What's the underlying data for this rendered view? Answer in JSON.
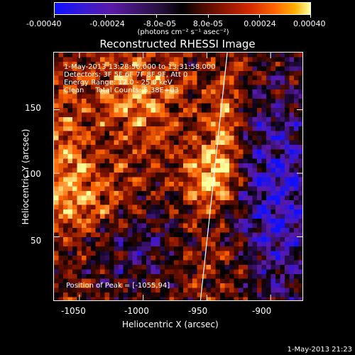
{
  "colorbar": {
    "ticks": [
      "-0.00040",
      "-0.00024",
      "-8.0e-05",
      "8.0e-05",
      "0.00024",
      "0.00040"
    ],
    "units": "(photons cm⁻² s⁻¹ asec⁻²)"
  },
  "title": "Reconstructed RHESSI Image",
  "info": {
    "time": "1-May-2013 13:28:56.000 to 13:31:58.000",
    "detectors": "Detectors: 3F 5F 6F 7F 8F 9F, Att 0",
    "energy": "Energy Range: 12.0 - 25.0 keV",
    "clean": "Clean     Total Counts: 5.38E+03",
    "peak": "Position of Peak = [-1055,94]"
  },
  "footer": {
    "date": "1-May-2013 21:23"
  },
  "chart_data": {
    "type": "heatmap",
    "title": "Reconstructed RHESSI Image",
    "xlabel": "Heliocentric X (arcsec)",
    "ylabel": "Heliocentric Y (arcsec)",
    "xlim": [
      -1070,
      -875
    ],
    "ylim": [
      0,
      195
    ],
    "xticks": [
      -1050,
      -1000,
      -950,
      -900
    ],
    "yticks": [
      50,
      100,
      150
    ],
    "xtick_labels": [
      "-1050",
      "-1000",
      "-950",
      "-900"
    ],
    "ytick_labels": [
      "50",
      "100",
      "150"
    ],
    "color_range": [
      -0.0004,
      0.0004
    ],
    "colormap": [
      "#1010ff",
      "#5a1aa8",
      "#000000",
      "#8a1400",
      "#ff6400",
      "#ffffa0"
    ],
    "limb_line": {
      "x": [
        -955,
        -934
      ],
      "y": [
        0,
        195
      ]
    },
    "peak": {
      "x": -1055,
      "y": 94
    }
  }
}
